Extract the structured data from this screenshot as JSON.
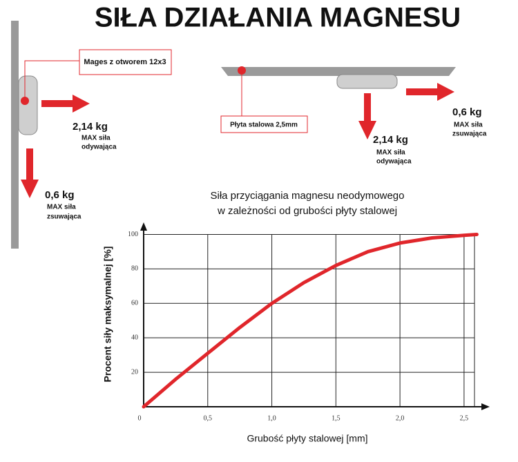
{
  "title": "SIŁA DZIAŁANIA MAGNESU",
  "left": {
    "label": "Mages z otworem 12x3",
    "pull": {
      "value": "2,14 kg",
      "lines": [
        "MAX siła",
        "odywająca"
      ]
    },
    "shear": {
      "value": "0,6 kg",
      "lines": [
        "MAX siła",
        "zsuwająca"
      ]
    }
  },
  "right": {
    "label": "Płyta stalowa 2,5mm",
    "pull": {
      "value": "2,14 kg",
      "lines": [
        "MAX siła",
        "odywająca"
      ]
    },
    "shear": {
      "value": "0,6 kg",
      "lines": [
        "MAX siła",
        "zsuwająca"
      ]
    }
  },
  "chart_data": {
    "type": "line",
    "title_lines": [
      "Siła przyciągania magnesu neodymowego",
      "w zależności od grubości płyty stalowej"
    ],
    "x_label": "Grubość płyty stalowej [mm]",
    "y_label": "Procent siły maksymalnej [%]",
    "x": [
      0,
      0.25,
      0.5,
      0.75,
      1.0,
      1.25,
      1.5,
      1.75,
      2.0,
      2.25,
      2.5,
      2.6
    ],
    "values": [
      0,
      16,
      31,
      46,
      60,
      72,
      82,
      90,
      95,
      98,
      99.5,
      100
    ],
    "color": "#e0262b",
    "xlim": [
      0,
      2.7
    ],
    "ylim": [
      0,
      107
    ],
    "xticks": [
      0,
      {
        "value": 0.5,
        "label": "0,5"
      },
      {
        "value": 1.0,
        "label": "1,0"
      },
      {
        "value": 1.5,
        "label": "1,5"
      },
      {
        "value": 2.0,
        "label": "2,0"
      },
      {
        "value": 2.5,
        "label": "2,5"
      }
    ],
    "yticks": [
      20,
      40,
      60,
      80,
      100
    ],
    "grid": true
  }
}
